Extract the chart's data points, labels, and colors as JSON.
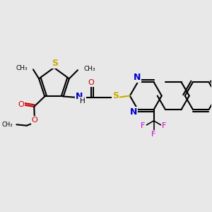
{
  "bg_color": "#e8e8e8",
  "bond_color": "#000000",
  "sulfur_color": "#ccaa00",
  "nitrogen_color": "#0000cc",
  "oxygen_color": "#cc0000",
  "fluorine_color": "#cc00cc",
  "line_width": 1.5,
  "figsize": [
    3.0,
    3.0
  ],
  "dpi": 100,
  "xlim": [
    0,
    10
  ],
  "ylim": [
    0,
    10
  ]
}
